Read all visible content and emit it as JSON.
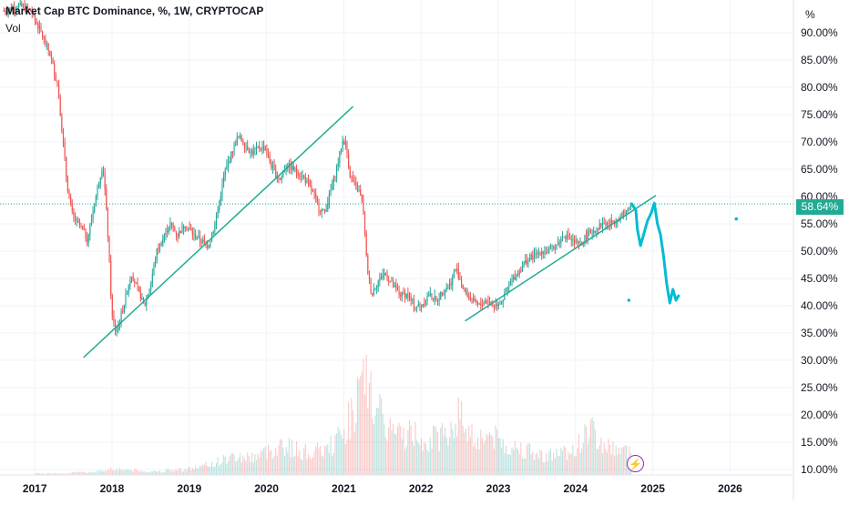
{
  "header": {
    "title": "Market Cap BTC Dominance, %, 1W, CRYPTOCAP",
    "volume_label": "Vol",
    "unit": "%",
    "last_value_badge": "58.64%"
  },
  "tools": {
    "flash_icon": "lightning-icon"
  },
  "colors": {
    "up": "#26a69a",
    "down": "#ef5350",
    "trendline": "#22ab94",
    "projection": "#00bcd4",
    "price_line": "#22ab94",
    "grid": "#f0f3fa"
  },
  "chart_data": {
    "type": "candlestick",
    "title": "Market Cap BTC Dominance, %, 1W, CRYPTOCAP",
    "interval": "1W",
    "y_axis": {
      "ticks": [
        "90.00%",
        "85.00%",
        "80.00%",
        "75.00%",
        "70.00%",
        "65.00%",
        "60.00%",
        "55.00%",
        "50.00%",
        "45.00%",
        "40.00%",
        "35.00%",
        "30.00%",
        "25.00%",
        "20.00%",
        "15.00%",
        "10.00%"
      ],
      "ylim": [
        9,
        96
      ],
      "scale": "linear"
    },
    "x_axis": {
      "ticks": [
        "2017",
        "2018",
        "2019",
        "2020",
        "2021",
        "2022",
        "2023",
        "2024",
        "2025",
        "2026"
      ],
      "xlim": [
        2016.55,
        2026.82
      ]
    },
    "last_value": 58.64,
    "price_series": [
      [
        2016.6,
        94
      ],
      [
        2016.8,
        95
      ],
      [
        2016.95,
        94
      ],
      [
        2017.05,
        91
      ],
      [
        2017.2,
        86
      ],
      [
        2017.3,
        80
      ],
      [
        2017.38,
        68
      ],
      [
        2017.42,
        62
      ],
      [
        2017.48,
        57
      ],
      [
        2017.55,
        55
      ],
      [
        2017.62,
        54
      ],
      [
        2017.68,
        52
      ],
      [
        2017.75,
        57
      ],
      [
        2017.82,
        62
      ],
      [
        2017.88,
        66
      ],
      [
        2017.92,
        59
      ],
      [
        2017.95,
        52
      ],
      [
        2018.0,
        38
      ],
      [
        2018.05,
        35
      ],
      [
        2018.15,
        40
      ],
      [
        2018.25,
        46
      ],
      [
        2018.33,
        43
      ],
      [
        2018.42,
        40
      ],
      [
        2018.5,
        44
      ],
      [
        2018.58,
        50
      ],
      [
        2018.65,
        52
      ],
      [
        2018.75,
        55
      ],
      [
        2018.85,
        53
      ],
      [
        2018.95,
        55
      ],
      [
        2019.05,
        53
      ],
      [
        2019.15,
        52
      ],
      [
        2019.25,
        51
      ],
      [
        2019.35,
        56
      ],
      [
        2019.45,
        64
      ],
      [
        2019.55,
        68
      ],
      [
        2019.63,
        71
      ],
      [
        2019.7,
        70
      ],
      [
        2019.8,
        68
      ],
      [
        2019.9,
        69
      ],
      [
        2019.98,
        69
      ],
      [
        2020.05,
        66
      ],
      [
        2020.12,
        64
      ],
      [
        2020.18,
        63
      ],
      [
        2020.25,
        66
      ],
      [
        2020.35,
        65
      ],
      [
        2020.45,
        64
      ],
      [
        2020.55,
        62
      ],
      [
        2020.62,
        60
      ],
      [
        2020.68,
        58
      ],
      [
        2020.75,
        57
      ],
      [
        2020.85,
        62
      ],
      [
        2020.92,
        66
      ],
      [
        2020.98,
        70
      ],
      [
        2021.02,
        70
      ],
      [
        2021.08,
        64
      ],
      [
        2021.14,
        62
      ],
      [
        2021.2,
        61
      ],
      [
        2021.25,
        58
      ],
      [
        2021.3,
        47
      ],
      [
        2021.36,
        42
      ],
      [
        2021.42,
        44
      ],
      [
        2021.52,
        46
      ],
      [
        2021.62,
        44
      ],
      [
        2021.72,
        42
      ],
      [
        2021.82,
        42
      ],
      [
        2021.92,
        40
      ],
      [
        2022.0,
        40
      ],
      [
        2022.1,
        42
      ],
      [
        2022.2,
        41
      ],
      [
        2022.3,
        43
      ],
      [
        2022.38,
        44
      ],
      [
        2022.45,
        47
      ],
      [
        2022.55,
        43
      ],
      [
        2022.65,
        41
      ],
      [
        2022.75,
        40
      ],
      [
        2022.85,
        41
      ],
      [
        2022.95,
        40
      ],
      [
        2023.05,
        41
      ],
      [
        2023.15,
        44
      ],
      [
        2023.25,
        46
      ],
      [
        2023.35,
        48
      ],
      [
        2023.45,
        49
      ],
      [
        2023.55,
        50
      ],
      [
        2023.65,
        50
      ],
      [
        2023.75,
        51
      ],
      [
        2023.85,
        53
      ],
      [
        2023.95,
        52
      ],
      [
        2024.05,
        51
      ],
      [
        2024.15,
        53
      ],
      [
        2024.25,
        54
      ],
      [
        2024.35,
        55
      ],
      [
        2024.45,
        55
      ],
      [
        2024.55,
        56
      ],
      [
        2024.65,
        57
      ],
      [
        2024.72,
        58.64
      ]
    ],
    "volume_series": [
      [
        2017.0,
        0.3
      ],
      [
        2017.4,
        0.4
      ],
      [
        2017.8,
        0.8
      ],
      [
        2018.0,
        1.4
      ],
      [
        2018.2,
        1.2
      ],
      [
        2018.4,
        0.8
      ],
      [
        2018.6,
        0.9
      ],
      [
        2018.8,
        1.1
      ],
      [
        2019.0,
        1.4
      ],
      [
        2019.2,
        2.0
      ],
      [
        2019.4,
        3.2
      ],
      [
        2019.6,
        4.2
      ],
      [
        2019.8,
        4.0
      ],
      [
        2020.0,
        5.2
      ],
      [
        2020.2,
        7.0
      ],
      [
        2020.4,
        5.5
      ],
      [
        2020.6,
        5.0
      ],
      [
        2020.8,
        6.0
      ],
      [
        2021.0,
        9.5
      ],
      [
        2021.1,
        14.0
      ],
      [
        2021.2,
        18.0
      ],
      [
        2021.3,
        21.0
      ],
      [
        2021.4,
        16.0
      ],
      [
        2021.5,
        12.0
      ],
      [
        2021.7,
        9.0
      ],
      [
        2021.9,
        9.5
      ],
      [
        2022.1,
        8.0
      ],
      [
        2022.3,
        9.0
      ],
      [
        2022.5,
        13.5
      ],
      [
        2022.7,
        8.0
      ],
      [
        2022.9,
        9.0
      ],
      [
        2023.1,
        6.5
      ],
      [
        2023.3,
        6.0
      ],
      [
        2023.5,
        4.5
      ],
      [
        2023.7,
        4.5
      ],
      [
        2023.9,
        5.5
      ],
      [
        2024.0,
        6.0
      ],
      [
        2024.1,
        8.0
      ],
      [
        2024.2,
        11.0
      ],
      [
        2024.3,
        7.0
      ],
      [
        2024.5,
        6.0
      ],
      [
        2024.7,
        5.0
      ]
    ],
    "trendlines": [
      {
        "from": [
          2017.63,
          30.5
        ],
        "to": [
          2021.12,
          76.5
        ]
      },
      {
        "from": [
          2022.57,
          37.2
        ],
        "to": [
          2025.04,
          60.2
        ]
      }
    ],
    "projection": [
      [
        2024.72,
        58.8
      ],
      [
        2024.78,
        57.5
      ],
      [
        2024.8,
        54
      ],
      [
        2024.84,
        51
      ],
      [
        2024.88,
        53
      ],
      [
        2024.93,
        55.5
      ],
      [
        2024.98,
        57
      ],
      [
        2025.02,
        58.8
      ],
      [
        2025.06,
        55
      ],
      [
        2025.1,
        53
      ],
      [
        2025.14,
        49
      ],
      [
        2025.18,
        44
      ],
      [
        2025.22,
        40.5
      ],
      [
        2025.26,
        43
      ],
      [
        2025.3,
        41
      ],
      [
        2025.34,
        42
      ]
    ],
    "projection_points": [
      [
        2024.69,
        41
      ],
      [
        2026.08,
        55.9
      ]
    ]
  }
}
